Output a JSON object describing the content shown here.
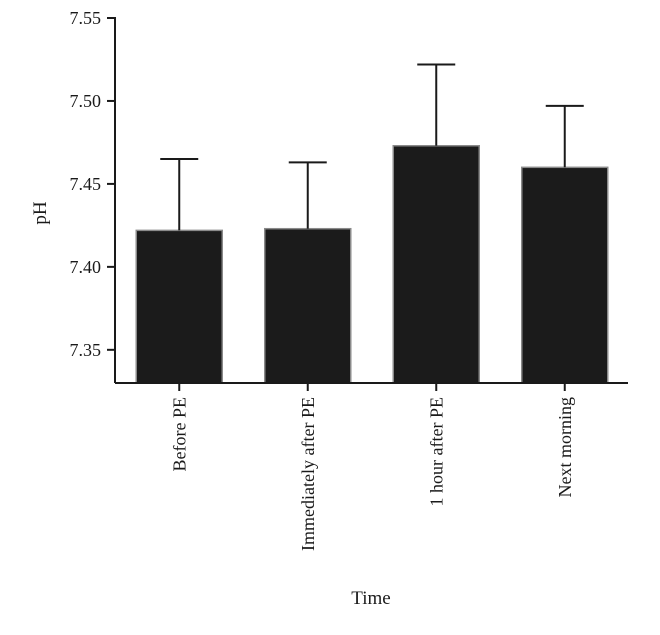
{
  "chart_data": {
    "type": "bar",
    "title": "",
    "xlabel": "Time",
    "ylabel": "pH",
    "categories": [
      "Before PE",
      "Immediately after PE",
      "1 hour after PE",
      "Next morning"
    ],
    "values": [
      7.422,
      7.423,
      7.473,
      7.46
    ],
    "error_upper": [
      7.465,
      7.463,
      7.522,
      7.497
    ],
    "ylim": [
      7.33,
      7.55
    ],
    "yticks": [
      "7.35",
      "7.40",
      "7.45",
      "7.50",
      "7.55"
    ],
    "grid": false,
    "legend": "none",
    "bar_color": "#1b1b1b",
    "bar_edge_color": "#8a8a8a",
    "axis_color": "#1a1a1a"
  }
}
